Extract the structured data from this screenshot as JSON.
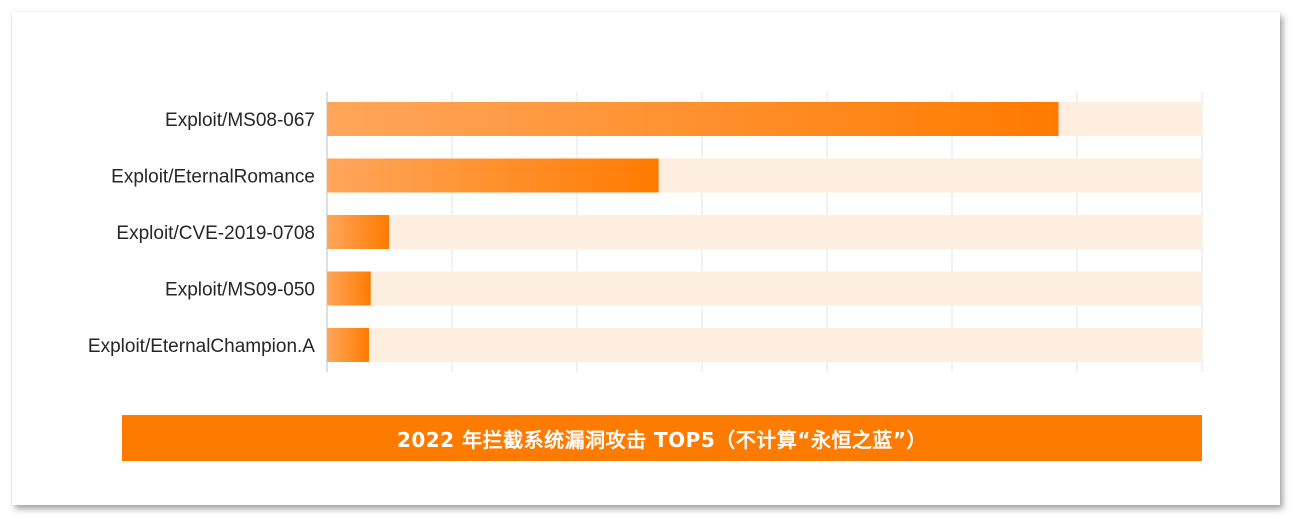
{
  "chart_data": {
    "type": "bar",
    "orientation": "horizontal",
    "categories": [
      "Exploit/MS08-067",
      "Exploit/EternalRomance",
      "Exploit/CVE-2019-0708",
      "Exploit/MS09-050",
      "Exploit/EternalChampion.A"
    ],
    "values": [
      0.836,
      0.379,
      0.071,
      0.05,
      0.048
    ],
    "value_units": "fraction of full-width background track",
    "xlim": [
      0,
      1
    ],
    "x_tick_labels_visible": false,
    "grid": true,
    "legend": "none",
    "caption": "2022 年拦截系统漏洞攻击 TOP5（不计算“永恒之蓝”）",
    "colors": {
      "bar_start": "#ffa65c",
      "bar_end": "#ff7b00",
      "track": "#fdeee0",
      "caption_bg": "#ff7b00",
      "gridline": "#e6e6e6",
      "axis": "#bfbfbf"
    }
  }
}
